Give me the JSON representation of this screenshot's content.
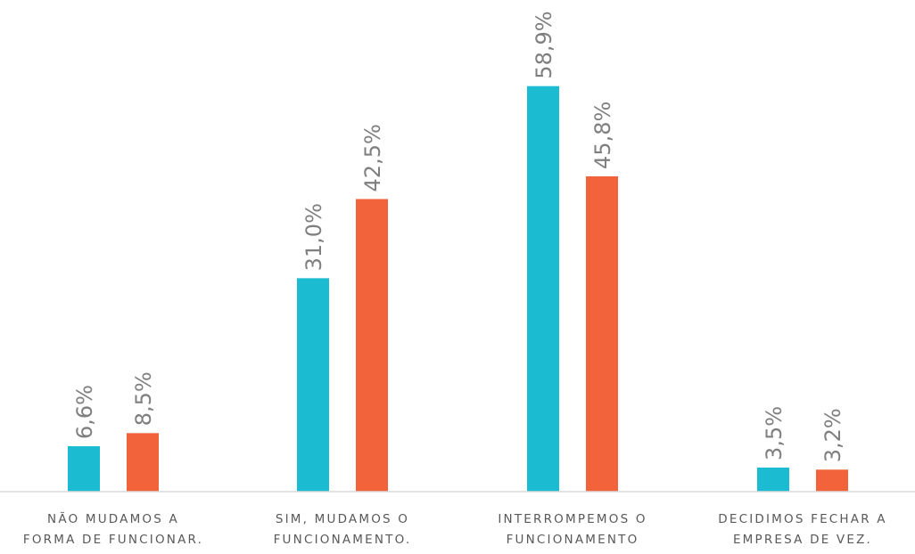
{
  "chart_data": {
    "type": "bar",
    "categories": [
      [
        "NÃO MUDAMOS A",
        "FORMA DE FUNCIONAR."
      ],
      [
        "SIM, MUDAMOS O",
        "FUNCIONAMENTO."
      ],
      [
        "INTERROMPEMOS O",
        "FUNCIONAMENTO"
      ],
      [
        "DECIDIMOS FECHAR A",
        "EMPRESA DE VEZ."
      ]
    ],
    "series": [
      {
        "color": "#1bbcd2",
        "values": [
          6.6,
          31.0,
          58.9,
          3.5
        ],
        "labels": [
          "6,6%",
          "31,0%",
          "58,9%",
          "3,5%"
        ]
      },
      {
        "color": "#f2623b",
        "values": [
          8.5,
          42.5,
          45.8,
          3.2
        ],
        "labels": [
          "8,5%",
          "42,5%",
          "45,8%",
          "3,2%"
        ]
      }
    ],
    "title": "",
    "xlabel": "",
    "ylabel": "",
    "ylim": [
      0,
      60
    ],
    "grid": false,
    "legend": "none",
    "axis_color": "#d9d9d9"
  }
}
